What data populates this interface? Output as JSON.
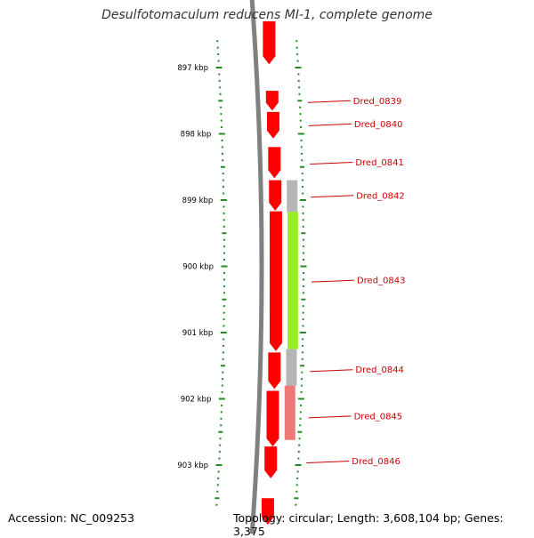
{
  "title": "Desulfotomaculum reducens MI-1, complete genome",
  "footer": {
    "accession": "Accession: NC_009253",
    "summary": "Topology: circular; Length: 3,608,104 bp; Genes: 3,375"
  },
  "colors": {
    "backbone": "#808080",
    "cds": "#ff0000",
    "gene_rna_grey": "#b5b5b5",
    "highlight_green": "#99ee22",
    "highlight_pink": "#ee7777",
    "tick_green": "#228b22",
    "label_red": "#cc0000"
  },
  "ruler": {
    "start_kbp": 896.6,
    "end_kbp": 903.6,
    "labels": [
      {
        "kbp": 897,
        "text": "897 kbp"
      },
      {
        "kbp": 898,
        "text": "898 kbp"
      },
      {
        "kbp": 899,
        "text": "899 kbp"
      },
      {
        "kbp": 900,
        "text": "900 kbp"
      },
      {
        "kbp": 901,
        "text": "901 kbp"
      },
      {
        "kbp": 902,
        "text": "902 kbp"
      },
      {
        "kbp": 903,
        "text": "903 kbp"
      }
    ]
  },
  "features": [
    {
      "track": "cds",
      "start_kbp": 896.3,
      "end_kbp": 896.95,
      "strand": "-",
      "color": "#ff0000"
    },
    {
      "track": "cds",
      "start_kbp": 897.35,
      "end_kbp": 897.65,
      "strand": "-",
      "color": "#ff0000"
    },
    {
      "track": "cds",
      "start_kbp": 897.67,
      "end_kbp": 898.07,
      "strand": "-",
      "color": "#ff0000"
    },
    {
      "track": "cds",
      "start_kbp": 898.2,
      "end_kbp": 898.67,
      "strand": "-",
      "color": "#ff0000"
    },
    {
      "track": "cds",
      "start_kbp": 898.7,
      "end_kbp": 899.16,
      "strand": "-",
      "color": "#ff0000"
    },
    {
      "track": "cds",
      "start_kbp": 899.17,
      "end_kbp": 901.28,
      "strand": "-",
      "color": "#ff0000"
    },
    {
      "track": "cds",
      "start_kbp": 901.3,
      "end_kbp": 901.85,
      "strand": "-",
      "color": "#ff0000"
    },
    {
      "track": "cds",
      "start_kbp": 901.88,
      "end_kbp": 902.72,
      "strand": "-",
      "color": "#ff0000"
    },
    {
      "track": "cds",
      "start_kbp": 902.72,
      "end_kbp": 903.2,
      "strand": "-",
      "color": "#ff0000"
    },
    {
      "track": "cds",
      "start_kbp": 903.5,
      "end_kbp": 903.9,
      "strand": "-",
      "color": "#ff0000"
    },
    {
      "track": "gene",
      "start_kbp": 898.7,
      "end_kbp": 899.18,
      "strand": "none",
      "color": "#b5b5b5"
    },
    {
      "track": "gene",
      "start_kbp": 899.18,
      "end_kbp": 901.25,
      "strand": "none",
      "color": "#99ee22"
    },
    {
      "track": "gene",
      "start_kbp": 901.25,
      "end_kbp": 901.8,
      "strand": "none",
      "color": "#b5b5b5"
    },
    {
      "track": "gene",
      "start_kbp": 901.8,
      "end_kbp": 902.62,
      "strand": "none",
      "color": "#ee7777"
    }
  ],
  "gene_labels": [
    {
      "name": "Dred_0839",
      "kbp": 897.5
    },
    {
      "name": "Dred_0840",
      "kbp": 897.85
    },
    {
      "name": "Dred_0841",
      "kbp": 898.43
    },
    {
      "name": "Dred_0842",
      "kbp": 898.93
    },
    {
      "name": "Dred_0843",
      "kbp": 900.21
    },
    {
      "name": "Dred_0844",
      "kbp": 901.56
    },
    {
      "name": "Dred_0845",
      "kbp": 902.26
    },
    {
      "name": "Dred_0846",
      "kbp": 902.94
    }
  ]
}
